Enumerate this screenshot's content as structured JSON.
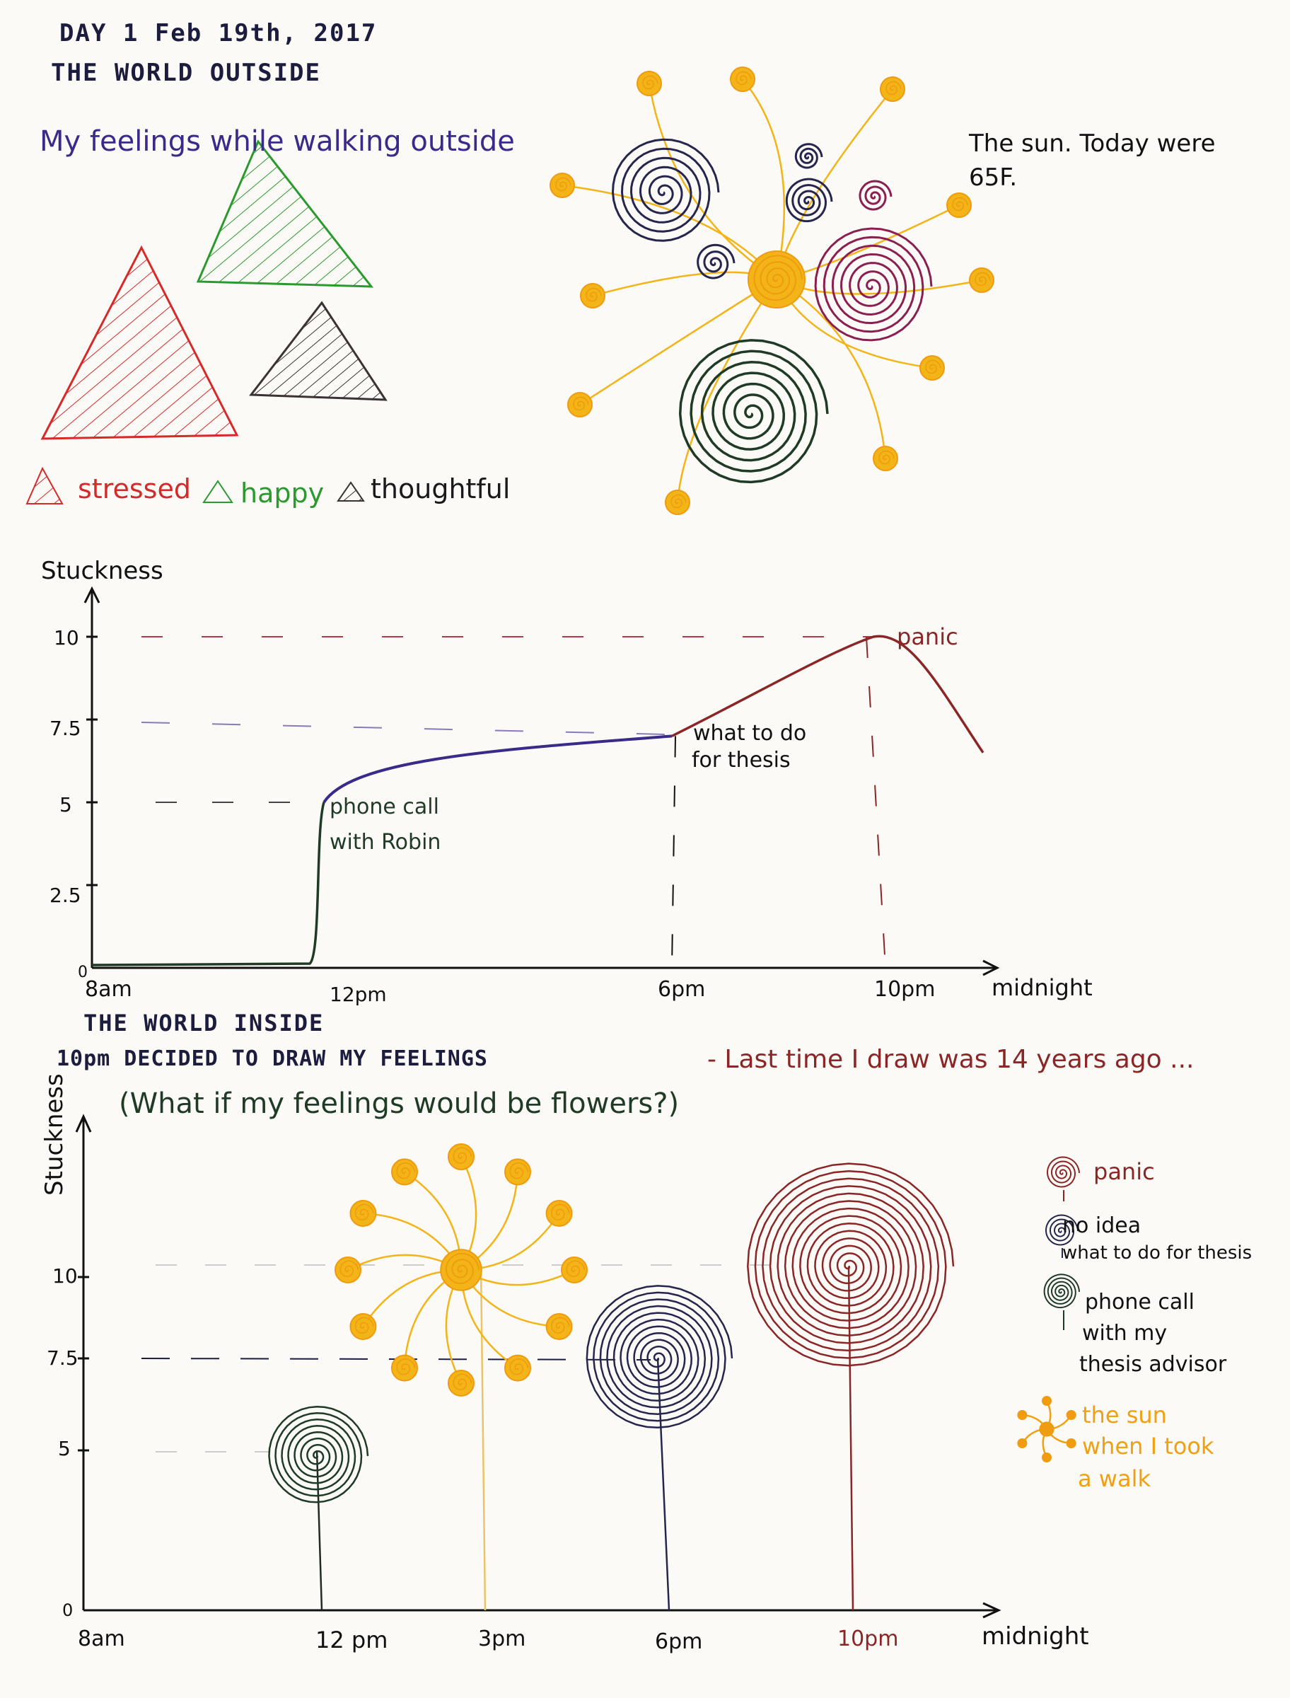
{
  "header": {
    "date_line": "DAY 1 Feb 19th, 2017",
    "section_outside": "THE WORLD OUTSIDE"
  },
  "outside": {
    "title": "My feelings while walking outside",
    "legend": [
      "stressed",
      "happy",
      "thoughtful"
    ],
    "sun_note": "The sun. Today were 65F."
  },
  "colors": {
    "stressed": "#d42a2a",
    "happy": "#2b9a2e",
    "thoughtful": "#3b3333",
    "sun": "#f3b417",
    "sun_center": "#f09a10",
    "navy": "#25254e",
    "panic": "#8a2626",
    "green_dark": "#1f3a25",
    "ink": "#111111",
    "purple_ink": "#3a2a8a"
  },
  "chart1": {
    "ylabel": "Stuckness",
    "yticks": [
      "0",
      "2.5",
      "5",
      "7.5",
      "10"
    ],
    "xticks": [
      "8am",
      "12pm",
      "6pm",
      "10pm",
      "midnight"
    ],
    "annotations": {
      "phone": [
        "phone call",
        "with Robin"
      ],
      "thesis": [
        "what to do",
        "for thesis"
      ],
      "panic": "panic"
    }
  },
  "inside": {
    "title": "THE WORLD INSIDE",
    "subtitle_dark": "10pm DECIDED TO DRAW MY FEELINGS",
    "subtitle_red": "- Last time I draw was 14 years ago ...",
    "question": "(What if my feelings would be flowers?)"
  },
  "chart2": {
    "ylabel": "Stuckness",
    "yticks": [
      "0",
      "5",
      "7.5",
      "10"
    ],
    "xticks": [
      "8am",
      "12 pm",
      "3pm",
      "6pm",
      "10pm",
      "midnight"
    ],
    "legend": {
      "panic": "panic",
      "noidea": [
        "no idea",
        "what to do for thesis"
      ],
      "phone": [
        "phone call",
        "with my",
        "thesis advisor"
      ],
      "sun": [
        "the sun",
        "when I took",
        "a walk"
      ]
    }
  },
  "chart_data": {
    "type": "line",
    "x": [
      "8am",
      "12pm",
      "6pm",
      "10pm",
      "midnight"
    ],
    "series": [
      {
        "values": [
          0,
          5,
          7,
          10,
          6.5
        ]
      }
    ],
    "ylabel": "Stuckness",
    "ylim": [
      0,
      10
    ]
  }
}
